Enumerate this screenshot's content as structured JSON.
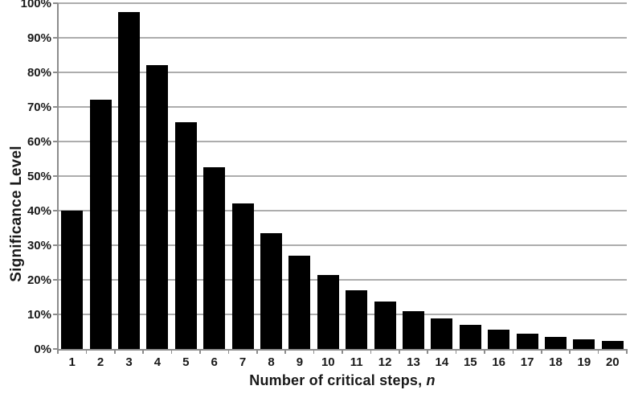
{
  "chart_data": {
    "type": "bar",
    "title": "",
    "xlabel": "Number of critical steps, n",
    "xlabel_text": "Number of critical steps,",
    "xlabel_var": "n",
    "ylabel": "Significance Level",
    "categories": [
      "1",
      "2",
      "3",
      "4",
      "5",
      "6",
      "7",
      "8",
      "9",
      "10",
      "11",
      "12",
      "13",
      "14",
      "15",
      "16",
      "17",
      "18",
      "19",
      "20"
    ],
    "values": [
      40,
      72,
      97.5,
      82,
      65.5,
      52.5,
      42,
      33.5,
      27,
      21.5,
      17,
      13.7,
      11,
      8.8,
      7,
      5.6,
      4.5,
      3.6,
      2.9,
      2.3
    ],
    "ylim": [
      0,
      100
    ],
    "ytick_step": 10,
    "ytick_labels": [
      "0%",
      "10%",
      "20%",
      "30%",
      "40%",
      "50%",
      "60%",
      "70%",
      "80%",
      "90%",
      "100%"
    ],
    "grid": true,
    "legend": false,
    "bar_color": "#000000",
    "gridline_color": "#adadad",
    "axis_color": "#8c8c8c",
    "text_color": "#1a1a1a",
    "background": "#ffffff"
  }
}
